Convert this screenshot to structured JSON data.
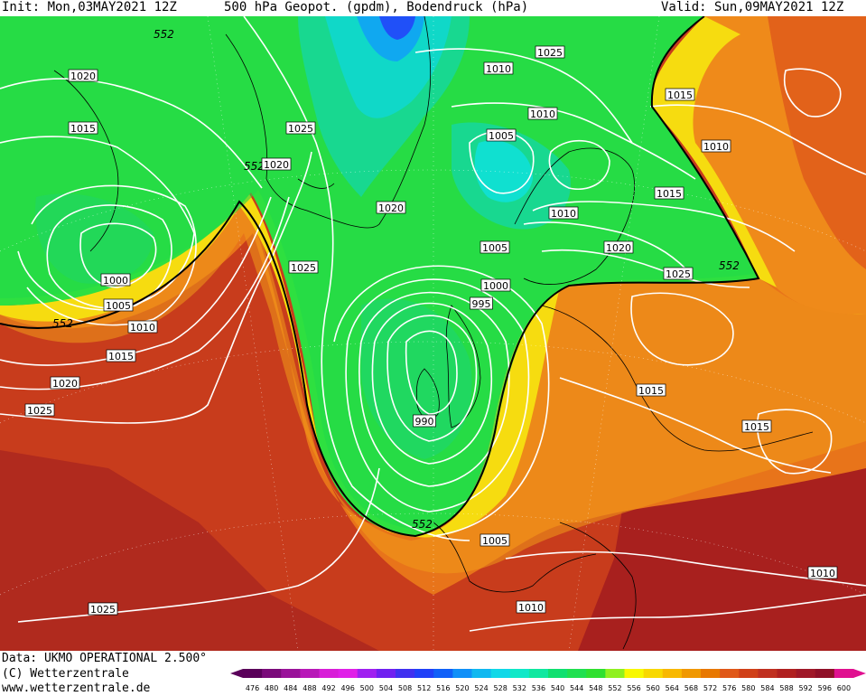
{
  "header": {
    "init": "Init: Mon,03MAY2021 12Z",
    "title": "500 hPa Geopot. (gpdm), Bodendruck (hPa)",
    "valid": "Valid: Sun,09MAY2021 12Z"
  },
  "footer": {
    "data_source": "Data: UKMO OPERATIONAL 2.500°",
    "copyright": "(C) Wetterzentrale",
    "website": "www.wetterzentrale.de"
  },
  "colorbar": {
    "ticks": [
      "476",
      "480",
      "484",
      "488",
      "492",
      "496",
      "500",
      "504",
      "508",
      "512",
      "516",
      "520",
      "524",
      "528",
      "532",
      "536",
      "540",
      "544",
      "548",
      "552",
      "556",
      "560",
      "564",
      "568",
      "572",
      "576",
      "580",
      "584",
      "588",
      "592",
      "596",
      "600"
    ],
    "colors": [
      "#5a005a",
      "#7a0a7a",
      "#9a129a",
      "#b818b8",
      "#d81ed8",
      "#e020e8",
      "#a020f0",
      "#7020f0",
      "#4030f0",
      "#2040f8",
      "#1060f8",
      "#1090f8",
      "#10b8f0",
      "#10d8e8",
      "#10e8c8",
      "#10e8a0",
      "#10e070",
      "#20e050",
      "#30e030",
      "#90f020",
      "#f8f800",
      "#f8d800",
      "#f8b800",
      "#f09800",
      "#e87800",
      "#e05818",
      "#d04018",
      "#c03020",
      "#b02020",
      "#a01828",
      "#901028",
      "#e01090"
    ]
  },
  "isobar_labels": [
    "1020",
    "1015",
    "1000",
    "1005",
    "1010",
    "1015",
    "1020",
    "1025",
    "1025",
    "1020",
    "1025",
    "1025",
    "1020",
    "1010",
    "1005",
    "1000",
    "995",
    "990",
    "1025",
    "1015",
    "1010",
    "1005",
    "1010",
    "1015",
    "1010",
    "1020",
    "1025",
    "1015",
    "1015",
    "1010",
    "1005",
    "1010",
    "1025"
  ],
  "height_552_label": "552",
  "colors": {
    "background": "#ffffff",
    "isobar": "#ffffff",
    "contour_552": "#000000"
  }
}
